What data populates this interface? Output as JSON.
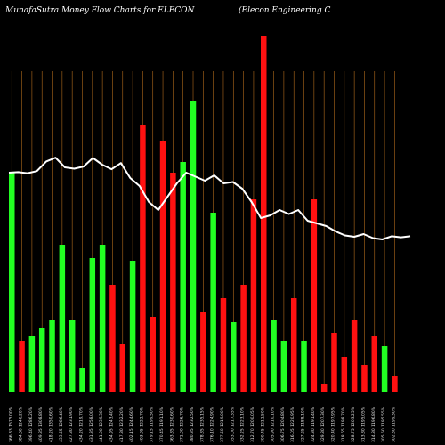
{
  "chart_data": {
    "type": "bar",
    "title_left": "MunafaSutra  Money Flow  Charts for ELECON",
    "title_right": "(Elecon  Engineering C",
    "categories": [
      "366.33 1575.00%",
      "384.60 1246.20%",
      "396.40 1286.20%",
      "409.85 1308.80%",
      "418.20 1350.60%",
      "433.55 1286.40%",
      "427.80 1231.90%",
      "434.20 1219.70%",
      "431.35 1258.00%",
      "441.90 1239.30%",
      "434.95 1243.40%",
      "417.80 1232.20%",
      "402.15 1244.60%",
      "403.95 1222.70%",
      "379.15 1199.50%",
      "370.45 1191.10%",
      "363.85 1230.60%",
      "371.00 1226.70%",
      "380.35 1232.50%",
      "378.85 1235.15%",
      "376.10 1224.90%",
      "377.50 1219.00%",
      "353.00 1217.35%",
      "332.25 1223.10%",
      "312.70 1200.05%",
      "300.45 1211.50%",
      "305.90 1210.10%",
      "306.75 1204.80%",
      "316.05 1220.95%",
      "327.25 1188.10%",
      "324.30 1191.40%",
      "329.80 1207.30%",
      "320.40 1197.95%",
      "318.65 1198.70%",
      "328.75 1203.25%",
      "313.80 1195.05%",
      "314.80 1196.80%",
      "305.50 1195.55%",
      "302.80 1199.30%"
    ],
    "bar_values": [
      0.82,
      0.19,
      0.21,
      0.24,
      0.27,
      0.55,
      0.27,
      0.09,
      0.5,
      0.55,
      0.4,
      0.18,
      0.49,
      1.0,
      0.28,
      0.94,
      0.82,
      0.86,
      1.09,
      0.3,
      0.67,
      0.35,
      0.26,
      0.4,
      0.72,
      1.33,
      0.27,
      0.19,
      0.35,
      0.19,
      0.72,
      0.03,
      0.22,
      0.13,
      0.27,
      0.1,
      0.21,
      0.17,
      0.06
    ],
    "bar_colors": [
      "green",
      "red",
      "green",
      "green",
      "green",
      "green",
      "green",
      "green",
      "green",
      "green",
      "red",
      "red",
      "green",
      "red",
      "red",
      "red",
      "red",
      "green",
      "green",
      "red",
      "green",
      "red",
      "green",
      "red",
      "red",
      "red",
      "green",
      "green",
      "red",
      "green",
      "red",
      "red",
      "red",
      "red",
      "red",
      "red",
      "red",
      "green",
      "red"
    ],
    "price_line": [
      0.82,
      0.822,
      0.818,
      0.826,
      0.862,
      0.876,
      0.84,
      0.835,
      0.843,
      0.875,
      0.85,
      0.833,
      0.856,
      0.8,
      0.77,
      0.71,
      0.68,
      0.73,
      0.78,
      0.82,
      0.805,
      0.79,
      0.81,
      0.78,
      0.785,
      0.76,
      0.71,
      0.65,
      0.66,
      0.68,
      0.665,
      0.68,
      0.64,
      0.63,
      0.62,
      0.6,
      0.585,
      0.58,
      0.59,
      0.575,
      0.57,
      0.582,
      0.578,
      0.582
    ],
    "colors": {
      "background": "#000000",
      "up": "#22ff22",
      "down": "#ff1111",
      "grid": "#b06a1c",
      "line": "#ffffff"
    }
  }
}
